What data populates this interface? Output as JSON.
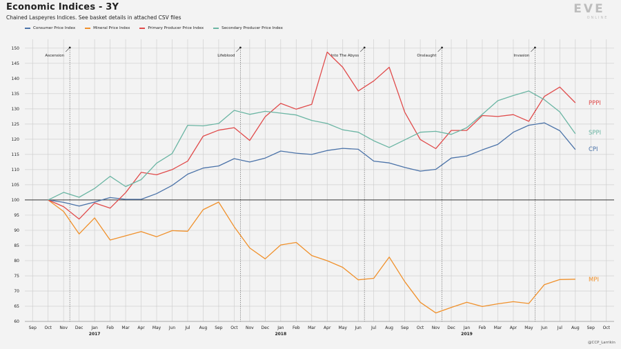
{
  "header": {
    "title": "Economic Indices - 3Y",
    "subtitle": "Chained Laspeyres Indices. See basket details in attached CSV files",
    "logo_text": "EVE",
    "logo_subtext": "ONLINE"
  },
  "footer": {
    "credit": "@CCP_Larrikin"
  },
  "chart_data": {
    "type": "line",
    "title": "Economic Indices - 3Y",
    "subtitle": "Chained Laspeyres Indices. See basket details in attached CSV files",
    "xlabel": "",
    "ylabel": "",
    "ylim": [
      60,
      152
    ],
    "yticks": [
      60,
      65,
      70,
      75,
      80,
      85,
      90,
      95,
      100,
      105,
      110,
      115,
      120,
      125,
      130,
      135,
      140,
      145,
      150
    ],
    "baseline": 100,
    "grid": true,
    "legend_position": "top-left",
    "x_tick_labels": [
      "Sep",
      "Oct",
      "Nov",
      "Dec",
      "Jan",
      "Feb",
      "Mar",
      "Apr",
      "May",
      "Jun",
      "Jul",
      "Aug",
      "Sep",
      "Oct",
      "Nov",
      "Dec",
      "Jan",
      "Feb",
      "Mar",
      "Apr",
      "May",
      "Jun",
      "Jul",
      "Aug",
      "Sep",
      "Oct",
      "Nov",
      "Dec",
      "Jan",
      "Feb",
      "Mar",
      "Apr",
      "May",
      "Jun",
      "Jul",
      "Aug",
      "Sep",
      "Oct"
    ],
    "year_labels": [
      {
        "index": 4,
        "label": "2017"
      },
      {
        "index": 16,
        "label": "2018"
      },
      {
        "index": 28,
        "label": "2019"
      }
    ],
    "x": [
      "2016-10",
      "2016-11",
      "2016-12",
      "2017-01",
      "2017-02",
      "2017-03",
      "2017-04",
      "2017-05",
      "2017-06",
      "2017-07",
      "2017-08",
      "2017-09",
      "2017-10",
      "2017-11",
      "2017-12",
      "2018-01",
      "2018-02",
      "2018-03",
      "2018-04",
      "2018-05",
      "2018-06",
      "2018-07",
      "2018-08",
      "2018-09",
      "2018-10",
      "2018-11",
      "2018-12",
      "2019-01",
      "2019-02",
      "2019-03",
      "2019-04",
      "2019-05",
      "2019-06",
      "2019-07",
      "2019-08"
    ],
    "series": [
      {
        "name": "Consumer Price Index",
        "label": "CPI",
        "color": "#4a72a8",
        "values": [
          100,
          99.2,
          98.0,
          99.3,
          100.8,
          100.2,
          100.2,
          102.1,
          104.8,
          108.5,
          110.5,
          111.2,
          113.6,
          112.5,
          113.8,
          116.1,
          115.4,
          115.0,
          116.3,
          117.0,
          116.7,
          112.8,
          112.2,
          110.7,
          109.5,
          110.1,
          113.8,
          114.5,
          116.5,
          118.3,
          122.3,
          124.6,
          125.4,
          122.8,
          116.6
        ]
      },
      {
        "name": "Mineral Price Index",
        "label": "MPI",
        "color": "#f0902a",
        "values": [
          100,
          96.2,
          88.8,
          94.1,
          86.8,
          88.2,
          89.6,
          87.9,
          89.9,
          89.7,
          96.8,
          99.3,
          91.2,
          84.2,
          80.6,
          85.2,
          86.0,
          81.7,
          80.0,
          77.8,
          73.7,
          74.2,
          81.2,
          73.1,
          66.3,
          62.8,
          64.6,
          66.3,
          64.9,
          65.8,
          66.5,
          65.9,
          72.1,
          73.8,
          73.9
        ]
      },
      {
        "name": "Primary Producer Price Index",
        "label": "PPPI",
        "color": "#e04a4a",
        "values": [
          100,
          97.8,
          93.7,
          99.0,
          97.3,
          102.4,
          109.1,
          108.3,
          110.0,
          112.8,
          121.0,
          123.0,
          123.8,
          119.6,
          127.4,
          131.8,
          129.9,
          131.5,
          148.7,
          143.7,
          135.9,
          139.2,
          143.7,
          128.9,
          119.9,
          116.9,
          122.9,
          122.9,
          127.8,
          127.5,
          128.1,
          125.9,
          134.1,
          137.2,
          132.0
        ]
      },
      {
        "name": "Secondary Producer Price Index",
        "label": "SPPI",
        "color": "#6ab5a3",
        "values": [
          100,
          102.5,
          100.9,
          103.8,
          107.8,
          104.4,
          106.7,
          112.1,
          115.3,
          124.6,
          124.4,
          125.2,
          129.5,
          128.2,
          129.2,
          128.6,
          128.0,
          126.2,
          125.2,
          123.1,
          122.3,
          119.5,
          117.3,
          119.8,
          122.3,
          122.6,
          121.6,
          123.8,
          128.2,
          132.7,
          134.4,
          135.9,
          133.0,
          129.0,
          121.8
        ]
      }
    ],
    "annotations": [
      {
        "label": "Ascension",
        "x": "2016-11"
      },
      {
        "label": "Lifeblood",
        "x": "2017-10"
      },
      {
        "label": "Into The Abyss",
        "x": "2018-06"
      },
      {
        "label": "Onslaught",
        "x": "2018-11"
      },
      {
        "label": "Invasion",
        "x": "2019-05"
      }
    ]
  }
}
